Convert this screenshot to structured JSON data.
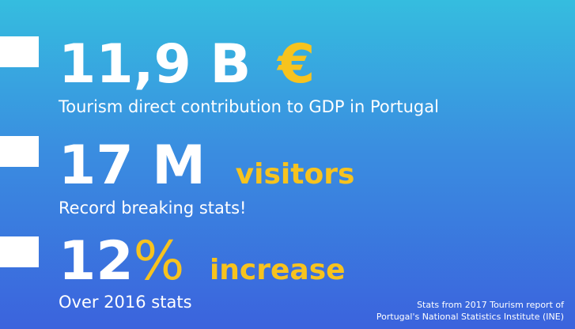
{
  "colors": {
    "gradient_top": "#35bddf",
    "gradient_bottom": "#3b63dd",
    "text": "#ffffff",
    "accent": "#f7c31e"
  },
  "stats": [
    {
      "number": "11,9 B",
      "accent": "€",
      "description": "Tourism direct contribution to GDP in Portugal"
    },
    {
      "number": "17 M",
      "accent": "visitors",
      "description": "Record breaking stats!"
    },
    {
      "number": "12",
      "accent_symbol": "%",
      "accent": "increase",
      "description": "Over 2016 stats"
    }
  ],
  "source": {
    "line1": "Stats from 2017 Tourism report of",
    "line2": "Portugal's National Statistics Institute (INE)"
  }
}
